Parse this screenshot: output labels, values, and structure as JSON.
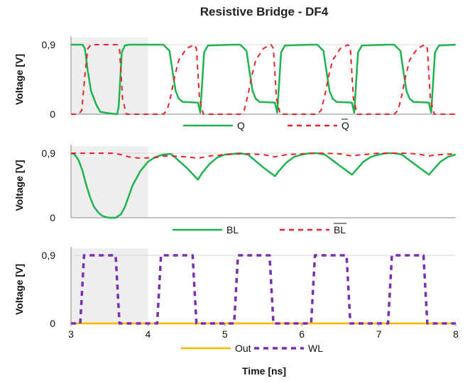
{
  "chart_data": {
    "title": "Resistive Bridge - DF4",
    "xlabel": "Time [ns]",
    "xlim": [
      3,
      8
    ],
    "xticks": [
      "3",
      "4",
      "5",
      "6",
      "7",
      "8"
    ],
    "shaded_region_x": [
      3,
      4
    ],
    "panels": [
      {
        "type": "line",
        "ylabel": "Voltage [V]",
        "ylim": [
          0,
          0.9
        ],
        "yticks": [
          "0",
          "0,9"
        ],
        "legend_labels": [
          "Q",
          "Q"
        ],
        "series": [
          {
            "legend_index": 0,
            "color": "#1db34d",
            "dash": "solid",
            "x": [
              3.0,
              3.15,
              3.18,
              3.22,
              3.26,
              3.33,
              3.38,
              3.5,
              3.6,
              3.62,
              3.66,
              3.7,
              3.75,
              4.1,
              4.2,
              4.28,
              4.32,
              4.36,
              4.4,
              4.45,
              4.55,
              4.65,
              4.68,
              4.73,
              4.78,
              5.1,
              5.2,
              5.28,
              5.32,
              5.36,
              5.4,
              5.45,
              5.55,
              5.65,
              5.68,
              5.73,
              5.78,
              6.1,
              6.2,
              6.28,
              6.32,
              6.36,
              6.4,
              6.45,
              6.55,
              6.65,
              6.68,
              6.73,
              6.78,
              7.1,
              7.2,
              7.28,
              7.32,
              7.36,
              7.4,
              7.45,
              7.55,
              7.65,
              7.68,
              7.73,
              7.78,
              8.0
            ],
            "y": [
              0.9,
              0.9,
              0.85,
              0.55,
              0.3,
              0.12,
              0.03,
              0.01,
              0.0,
              0.1,
              0.8,
              0.89,
              0.9,
              0.9,
              0.9,
              0.82,
              0.55,
              0.3,
              0.2,
              0.16,
              0.155,
              0.15,
              0.02,
              0.8,
              0.89,
              0.9,
              0.9,
              0.82,
              0.55,
              0.3,
              0.2,
              0.16,
              0.155,
              0.15,
              0.02,
              0.8,
              0.89,
              0.9,
              0.9,
              0.82,
              0.55,
              0.3,
              0.2,
              0.16,
              0.155,
              0.15,
              0.02,
              0.8,
              0.89,
              0.9,
              0.9,
              0.82,
              0.55,
              0.3,
              0.2,
              0.16,
              0.155,
              0.15,
              0.02,
              0.8,
              0.89,
              0.9
            ]
          },
          {
            "legend_index": 1,
            "color": "#e8232a",
            "dash": "dashed",
            "x": [
              3.0,
              3.1,
              3.14,
              3.18,
              3.22,
              3.26,
              3.6,
              3.63,
              3.67,
              3.72,
              4.2,
              4.25,
              4.3,
              4.35,
              4.4,
              4.5,
              4.6,
              4.63,
              4.67,
              4.72,
              5.2,
              5.25,
              5.3,
              5.35,
              5.4,
              5.5,
              5.6,
              5.63,
              5.67,
              5.72,
              6.2,
              6.25,
              6.3,
              6.35,
              6.4,
              6.5,
              6.6,
              6.63,
              6.67,
              6.72,
              7.2,
              7.25,
              7.3,
              7.35,
              7.4,
              7.5,
              7.6,
              7.63,
              7.67,
              7.72,
              8.0
            ],
            "y": [
              0.0,
              0.0,
              0.05,
              0.5,
              0.85,
              0.9,
              0.9,
              0.85,
              0.2,
              0.0,
              0.0,
              0.05,
              0.25,
              0.5,
              0.7,
              0.85,
              0.9,
              0.85,
              0.2,
              0.0,
              0.0,
              0.05,
              0.25,
              0.5,
              0.7,
              0.85,
              0.9,
              0.85,
              0.2,
              0.0,
              0.0,
              0.05,
              0.25,
              0.5,
              0.7,
              0.85,
              0.9,
              0.85,
              0.2,
              0.0,
              0.0,
              0.05,
              0.25,
              0.5,
              0.7,
              0.85,
              0.9,
              0.85,
              0.2,
              0.0,
              0.0
            ]
          }
        ]
      },
      {
        "type": "line",
        "ylabel": "Voltage [V]",
        "ylim": [
          0,
          0.9
        ],
        "yticks": [
          "0",
          "0,9"
        ],
        "legend_labels": [
          "BL",
          "BL"
        ],
        "series": [
          {
            "legend_index": 0,
            "color": "#1db34d",
            "dash": "solid",
            "x": [
              3.0,
              3.05,
              3.1,
              3.15,
              3.2,
              3.25,
              3.3,
              3.35,
              3.4,
              3.45,
              3.5,
              3.58,
              3.65,
              3.7,
              3.75,
              3.8,
              3.9,
              4.0,
              4.1,
              4.2,
              4.3,
              4.5,
              4.65,
              4.7,
              4.8,
              4.9,
              5.0,
              5.1,
              5.2,
              5.3,
              5.5,
              5.65,
              5.7,
              5.8,
              5.9,
              6.0,
              6.1,
              6.2,
              6.3,
              6.5,
              6.65,
              6.7,
              6.8,
              6.9,
              7.0,
              7.1,
              7.2,
              7.3,
              7.5,
              7.65,
              7.7,
              7.8,
              7.9,
              8.0
            ],
            "y": [
              0.9,
              0.88,
              0.8,
              0.65,
              0.45,
              0.28,
              0.15,
              0.08,
              0.03,
              0.01,
              0.0,
              0.0,
              0.05,
              0.15,
              0.3,
              0.45,
              0.65,
              0.78,
              0.85,
              0.88,
              0.89,
              0.7,
              0.53,
              0.62,
              0.75,
              0.84,
              0.88,
              0.89,
              0.9,
              0.88,
              0.7,
              0.58,
              0.65,
              0.77,
              0.85,
              0.88,
              0.9,
              0.9,
              0.88,
              0.72,
              0.6,
              0.66,
              0.78,
              0.85,
              0.88,
              0.9,
              0.9,
              0.88,
              0.72,
              0.6,
              0.66,
              0.78,
              0.85,
              0.88
            ]
          },
          {
            "legend_index": 1,
            "color": "#e8232a",
            "dash": "dashed",
            "x": [
              3.0,
              3.4,
              3.55,
              3.65,
              3.75,
              3.9,
              4.1,
              4.2,
              4.3,
              4.5,
              4.65,
              4.7,
              4.8,
              5.0,
              5.2,
              5.3,
              5.5,
              5.65,
              5.7,
              5.8,
              6.0,
              6.2,
              6.3,
              6.5,
              6.65,
              6.7,
              6.8,
              7.0,
              7.2,
              7.3,
              7.5,
              7.65,
              7.7,
              7.8,
              8.0
            ],
            "y": [
              0.9,
              0.9,
              0.9,
              0.88,
              0.85,
              0.83,
              0.84,
              0.86,
              0.86,
              0.85,
              0.83,
              0.84,
              0.86,
              0.88,
              0.89,
              0.89,
              0.88,
              0.85,
              0.86,
              0.88,
              0.89,
              0.9,
              0.9,
              0.89,
              0.86,
              0.87,
              0.88,
              0.9,
              0.9,
              0.9,
              0.89,
              0.86,
              0.87,
              0.88,
              0.89
            ]
          }
        ]
      },
      {
        "type": "line",
        "ylabel": "Voltage [V]",
        "ylim": [
          0,
          0.9
        ],
        "yticks": [
          "0",
          "0,9"
        ],
        "legend_labels": [
          "Out",
          "WL"
        ],
        "series": [
          {
            "legend_index": 0,
            "color": "#f5b800",
            "dash": "solid",
            "x": [
              3.0,
              8.0
            ],
            "y": [
              0.0,
              0.0
            ]
          },
          {
            "legend_index": 1,
            "color": "#7b2fb0",
            "dash": "dashed",
            "x": [
              3.0,
              3.12,
              3.17,
              3.58,
              3.63,
              4.12,
              4.17,
              4.58,
              4.63,
              5.12,
              5.17,
              5.58,
              5.63,
              6.12,
              6.17,
              6.58,
              6.63,
              7.12,
              7.17,
              7.58,
              7.63,
              8.0
            ],
            "y": [
              0.0,
              0.0,
              0.9,
              0.9,
              0.0,
              0.0,
              0.9,
              0.9,
              0.0,
              0.0,
              0.9,
              0.9,
              0.0,
              0.0,
              0.9,
              0.9,
              0.0,
              0.0,
              0.9,
              0.9,
              0.0,
              0.0
            ]
          }
        ]
      }
    ]
  }
}
